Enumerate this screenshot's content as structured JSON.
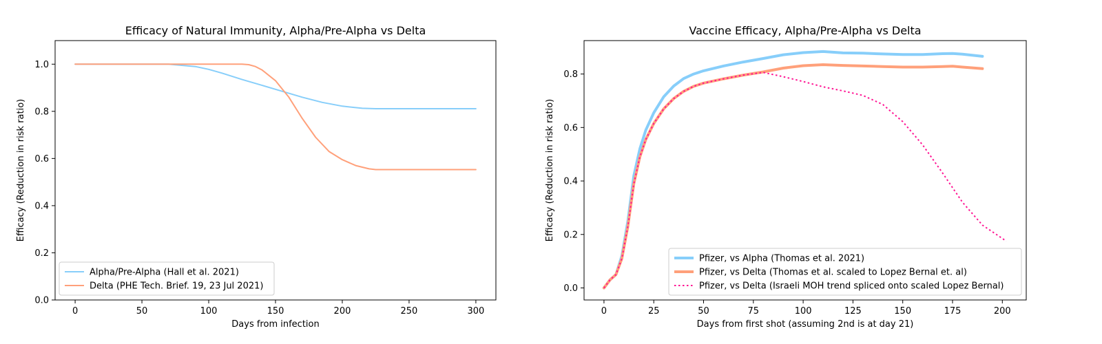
{
  "chart_data": [
    {
      "type": "line",
      "title": "Efficacy of Natural Immunity, Alpha/Pre-Alpha vs Delta",
      "xlabel": "Days from infection",
      "ylabel": "Efficacy (Reduction in risk ratio)",
      "xlim": [
        -15,
        315
      ],
      "ylim": [
        0.0,
        1.1
      ],
      "xticks": [
        0,
        50,
        100,
        150,
        200,
        250,
        300
      ],
      "yticks": [
        0.0,
        0.2,
        0.4,
        0.6,
        0.8,
        1.0
      ],
      "ytick_labels": [
        "0.0",
        "0.2",
        "0.4",
        "0.6",
        "0.8",
        "1.0"
      ],
      "grid": false,
      "legend_position": "lower-left",
      "series": [
        {
          "name": "Alpha/Pre-Alpha (Hall et al. 2021)",
          "color": "#87CEFA",
          "style": "solid",
          "x": [
            0,
            50,
            70,
            90,
            100,
            110,
            125,
            140,
            155,
            170,
            185,
            200,
            215,
            225,
            250,
            300
          ],
          "y": [
            1.0,
            1.0,
            1.0,
            0.99,
            0.978,
            0.962,
            0.935,
            0.91,
            0.885,
            0.86,
            0.838,
            0.822,
            0.813,
            0.811,
            0.811,
            0.811
          ]
        },
        {
          "name": "Delta (PHE Tech. Brief. 19, 23 Jul 2021)",
          "color": "#FFA07A",
          "style": "solid",
          "x": [
            0,
            50,
            100,
            125,
            130,
            135,
            140,
            150,
            160,
            170,
            180,
            190,
            200,
            210,
            220,
            225,
            250,
            300
          ],
          "y": [
            1.0,
            1.0,
            1.0,
            1.0,
            0.998,
            0.99,
            0.975,
            0.93,
            0.86,
            0.77,
            0.69,
            0.63,
            0.595,
            0.57,
            0.556,
            0.553,
            0.553,
            0.553
          ]
        }
      ]
    },
    {
      "type": "line",
      "title": "Vaccine Efficacy, Alpha/Pre-Alpha vs Delta",
      "xlabel": "Days from first shot (assuming 2nd is at day 21)",
      "ylabel": "Efficacy (Reduction in risk ratio)",
      "xlim": [
        -10,
        212
      ],
      "ylim": [
        -0.045,
        0.925
      ],
      "xticks": [
        0,
        25,
        50,
        75,
        100,
        125,
        150,
        175,
        200
      ],
      "yticks": [
        0.0,
        0.2,
        0.4,
        0.6,
        0.8
      ],
      "ytick_labels": [
        "0.0",
        "0.2",
        "0.4",
        "0.6",
        "0.8"
      ],
      "grid": false,
      "legend_position": "lower-right",
      "series": [
        {
          "name": "Pfizer, vs Alpha (Thomas et al. 2021)",
          "color": "#87CEFA",
          "style": "solid",
          "width": 4,
          "x": [
            0,
            3,
            6,
            9,
            12,
            15,
            18,
            21,
            25,
            30,
            35,
            40,
            45,
            50,
            60,
            70,
            80,
            90,
            100,
            110,
            120,
            130,
            140,
            150,
            160,
            170,
            175,
            180,
            190
          ],
          "y": [
            0.0,
            0.03,
            0.05,
            0.12,
            0.25,
            0.42,
            0.52,
            0.59,
            0.655,
            0.715,
            0.755,
            0.783,
            0.8,
            0.812,
            0.83,
            0.845,
            0.858,
            0.872,
            0.88,
            0.884,
            0.879,
            0.878,
            0.875,
            0.873,
            0.873,
            0.876,
            0.877,
            0.874,
            0.866
          ]
        },
        {
          "name": "Pfizer, vs Delta (Thomas et al. scaled to Lopez Bernal et. al)",
          "color": "#FFA07A",
          "style": "solid",
          "width": 4,
          "x": [
            0,
            3,
            6,
            9,
            12,
            15,
            18,
            21,
            25,
            30,
            35,
            40,
            45,
            50,
            60,
            70,
            80,
            90,
            100,
            110,
            120,
            130,
            140,
            150,
            160,
            170,
            175,
            180,
            190
          ],
          "y": [
            0.0,
            0.03,
            0.05,
            0.11,
            0.23,
            0.39,
            0.49,
            0.555,
            0.615,
            0.67,
            0.708,
            0.735,
            0.754,
            0.766,
            0.782,
            0.796,
            0.808,
            0.822,
            0.831,
            0.835,
            0.832,
            0.83,
            0.828,
            0.826,
            0.826,
            0.828,
            0.829,
            0.826,
            0.82
          ]
        },
        {
          "name": "Pfizer, vs Delta (Israeli MOH trend spliced onto scaled Lopez Bernal)",
          "color": "#FF1493",
          "style": "dotted",
          "width": 2,
          "x": [
            0,
            3,
            6,
            9,
            12,
            15,
            18,
            21,
            25,
            30,
            35,
            40,
            45,
            50,
            60,
            70,
            80,
            90,
            100,
            110,
            120,
            130,
            140,
            150,
            160,
            170,
            180,
            190,
            200,
            202
          ],
          "y": [
            0.0,
            0.03,
            0.05,
            0.11,
            0.23,
            0.39,
            0.49,
            0.555,
            0.615,
            0.67,
            0.708,
            0.735,
            0.754,
            0.766,
            0.782,
            0.796,
            0.806,
            0.79,
            0.772,
            0.752,
            0.737,
            0.72,
            0.686,
            0.622,
            0.535,
            0.43,
            0.32,
            0.235,
            0.185,
            0.175
          ]
        }
      ]
    }
  ]
}
